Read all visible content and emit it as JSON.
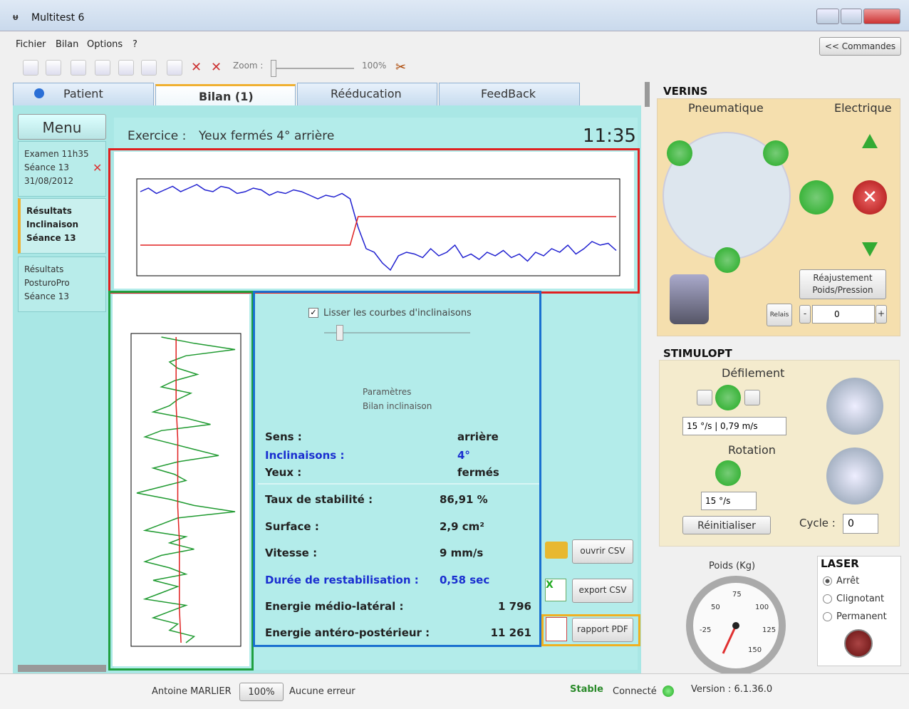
{
  "window": {
    "title": "Multitest 6"
  },
  "menu": [
    "Fichier",
    "Bilan",
    "Options",
    "?"
  ],
  "commandes_button": "<< Commandes",
  "toolbar": {
    "zoom_label": "Zoom :",
    "zoom_value": "100%"
  },
  "tabs": [
    "Patient",
    "Bilan (1)",
    "Rééducation",
    "FeedBack"
  ],
  "sidebar": {
    "title": "Menu",
    "items": [
      [
        "Examen 11h35",
        "Séance 13",
        "31/08/2012"
      ],
      [
        "Résultats",
        "Inclinaison",
        "Séance 13"
      ],
      [
        "Résultats",
        "PosturoPro",
        "Séance 13"
      ]
    ]
  },
  "exercise": {
    "label": "Exercice :",
    "name": "Yeux fermés 4° arrière",
    "time": "11:35"
  },
  "top_chart": {
    "type": "line",
    "series": [
      {
        "color": "#2020d0",
        "values": [
          70,
          72,
          69,
          71,
          73,
          70,
          72,
          74,
          71,
          70,
          73,
          72,
          69,
          70,
          72,
          71,
          68,
          70,
          69,
          71,
          70,
          68,
          66,
          68,
          67,
          69,
          66,
          50,
          38,
          36,
          30,
          26,
          34,
          36,
          35,
          33,
          38,
          34,
          36,
          40,
          33,
          35,
          32,
          36,
          34,
          37,
          33,
          35,
          31,
          36,
          34,
          38,
          36,
          40,
          35,
          38,
          42,
          40,
          41,
          37
        ]
      },
      {
        "color": "#e02020",
        "values": [
          40,
          40,
          40,
          40,
          40,
          40,
          40,
          40,
          40,
          40,
          40,
          40,
          40,
          40,
          40,
          40,
          40,
          40,
          40,
          40,
          40,
          40,
          40,
          40,
          40,
          40,
          40,
          56,
          56,
          56,
          56,
          56,
          56,
          56,
          56,
          56,
          56,
          56,
          56,
          56,
          56,
          56,
          56,
          56,
          56,
          56,
          56,
          56,
          56,
          56,
          56,
          56,
          56,
          56,
          56,
          56,
          56,
          56,
          56,
          56
        ]
      }
    ]
  },
  "left_chart": {
    "type": "line",
    "series": [
      {
        "color": "#1f9a30",
        "values": [
          40,
          60,
          85,
          55,
          45,
          50,
          62,
          48,
          40,
          58,
          50,
          45,
          35,
          55,
          70,
          40,
          30,
          45,
          60,
          75,
          50,
          35,
          48,
          55,
          40,
          25,
          45,
          60,
          85,
          50,
          40,
          30,
          55,
          45,
          60,
          40,
          30,
          45,
          55,
          35,
          50,
          40,
          30,
          55,
          45,
          35,
          50,
          45,
          60,
          55
        ]
      },
      {
        "color": "#e02020",
        "values": [
          49,
          49,
          49,
          50,
          50,
          50,
          51,
          51,
          51,
          52
        ]
      }
    ]
  },
  "params": {
    "checkbox": "Lisser les courbes d'inclinaisons",
    "title": [
      "Paramètres",
      "Bilan inclinaison"
    ],
    "rows": [
      [
        "Sens :",
        "arrière"
      ],
      [
        "Inclinaisons :",
        "4°"
      ],
      [
        "Yeux :",
        "fermés"
      ]
    ],
    "results": [
      [
        "Taux de stabilité :",
        "86,91 %"
      ],
      [
        "Surface :",
        "2,9 cm²"
      ],
      [
        "Vitesse :",
        "9 mm/s"
      ],
      [
        "Durée de restabilisation :",
        "0,58 sec"
      ],
      [
        "Energie médio-latéral :",
        "1 796"
      ],
      [
        "Energie antéro-postérieur :",
        "11 261"
      ]
    ]
  },
  "buttons": [
    "ouvrir CSV",
    "export CSV",
    "rapport PDF"
  ],
  "verins": {
    "title": "VERINS",
    "pneumatique": "Pneumatique",
    "electrique": "Electrique",
    "relais": "Relais",
    "reajustement": [
      "Réajustement",
      "Poids/Pression"
    ],
    "spinner": "0"
  },
  "stimulopt": {
    "title": "STIMULOPT",
    "defilement": "Défilement",
    "defilement_speed": "15 °/s | 0,79 m/s",
    "rotation": "Rotation",
    "rotation_speed": "15 °/s",
    "reinit": "Réinitialiser",
    "cycle_label": "Cycle :",
    "cycle": "0"
  },
  "poids": {
    "title": "Poids (Kg)",
    "gauge_labels": [
      "-25",
      "50",
      "75",
      "100",
      "125",
      "150"
    ]
  },
  "laser": {
    "title": "LASER",
    "options": [
      "Arrêt",
      "Clignotant",
      "Permanent"
    ],
    "selected": 0
  },
  "status": {
    "user": "Antoine MARLIER",
    "zoom": "100%",
    "errors": "Aucune erreur",
    "stable": "Stable",
    "connected": "Connecté",
    "version": "Version : 6.1.36.0"
  }
}
